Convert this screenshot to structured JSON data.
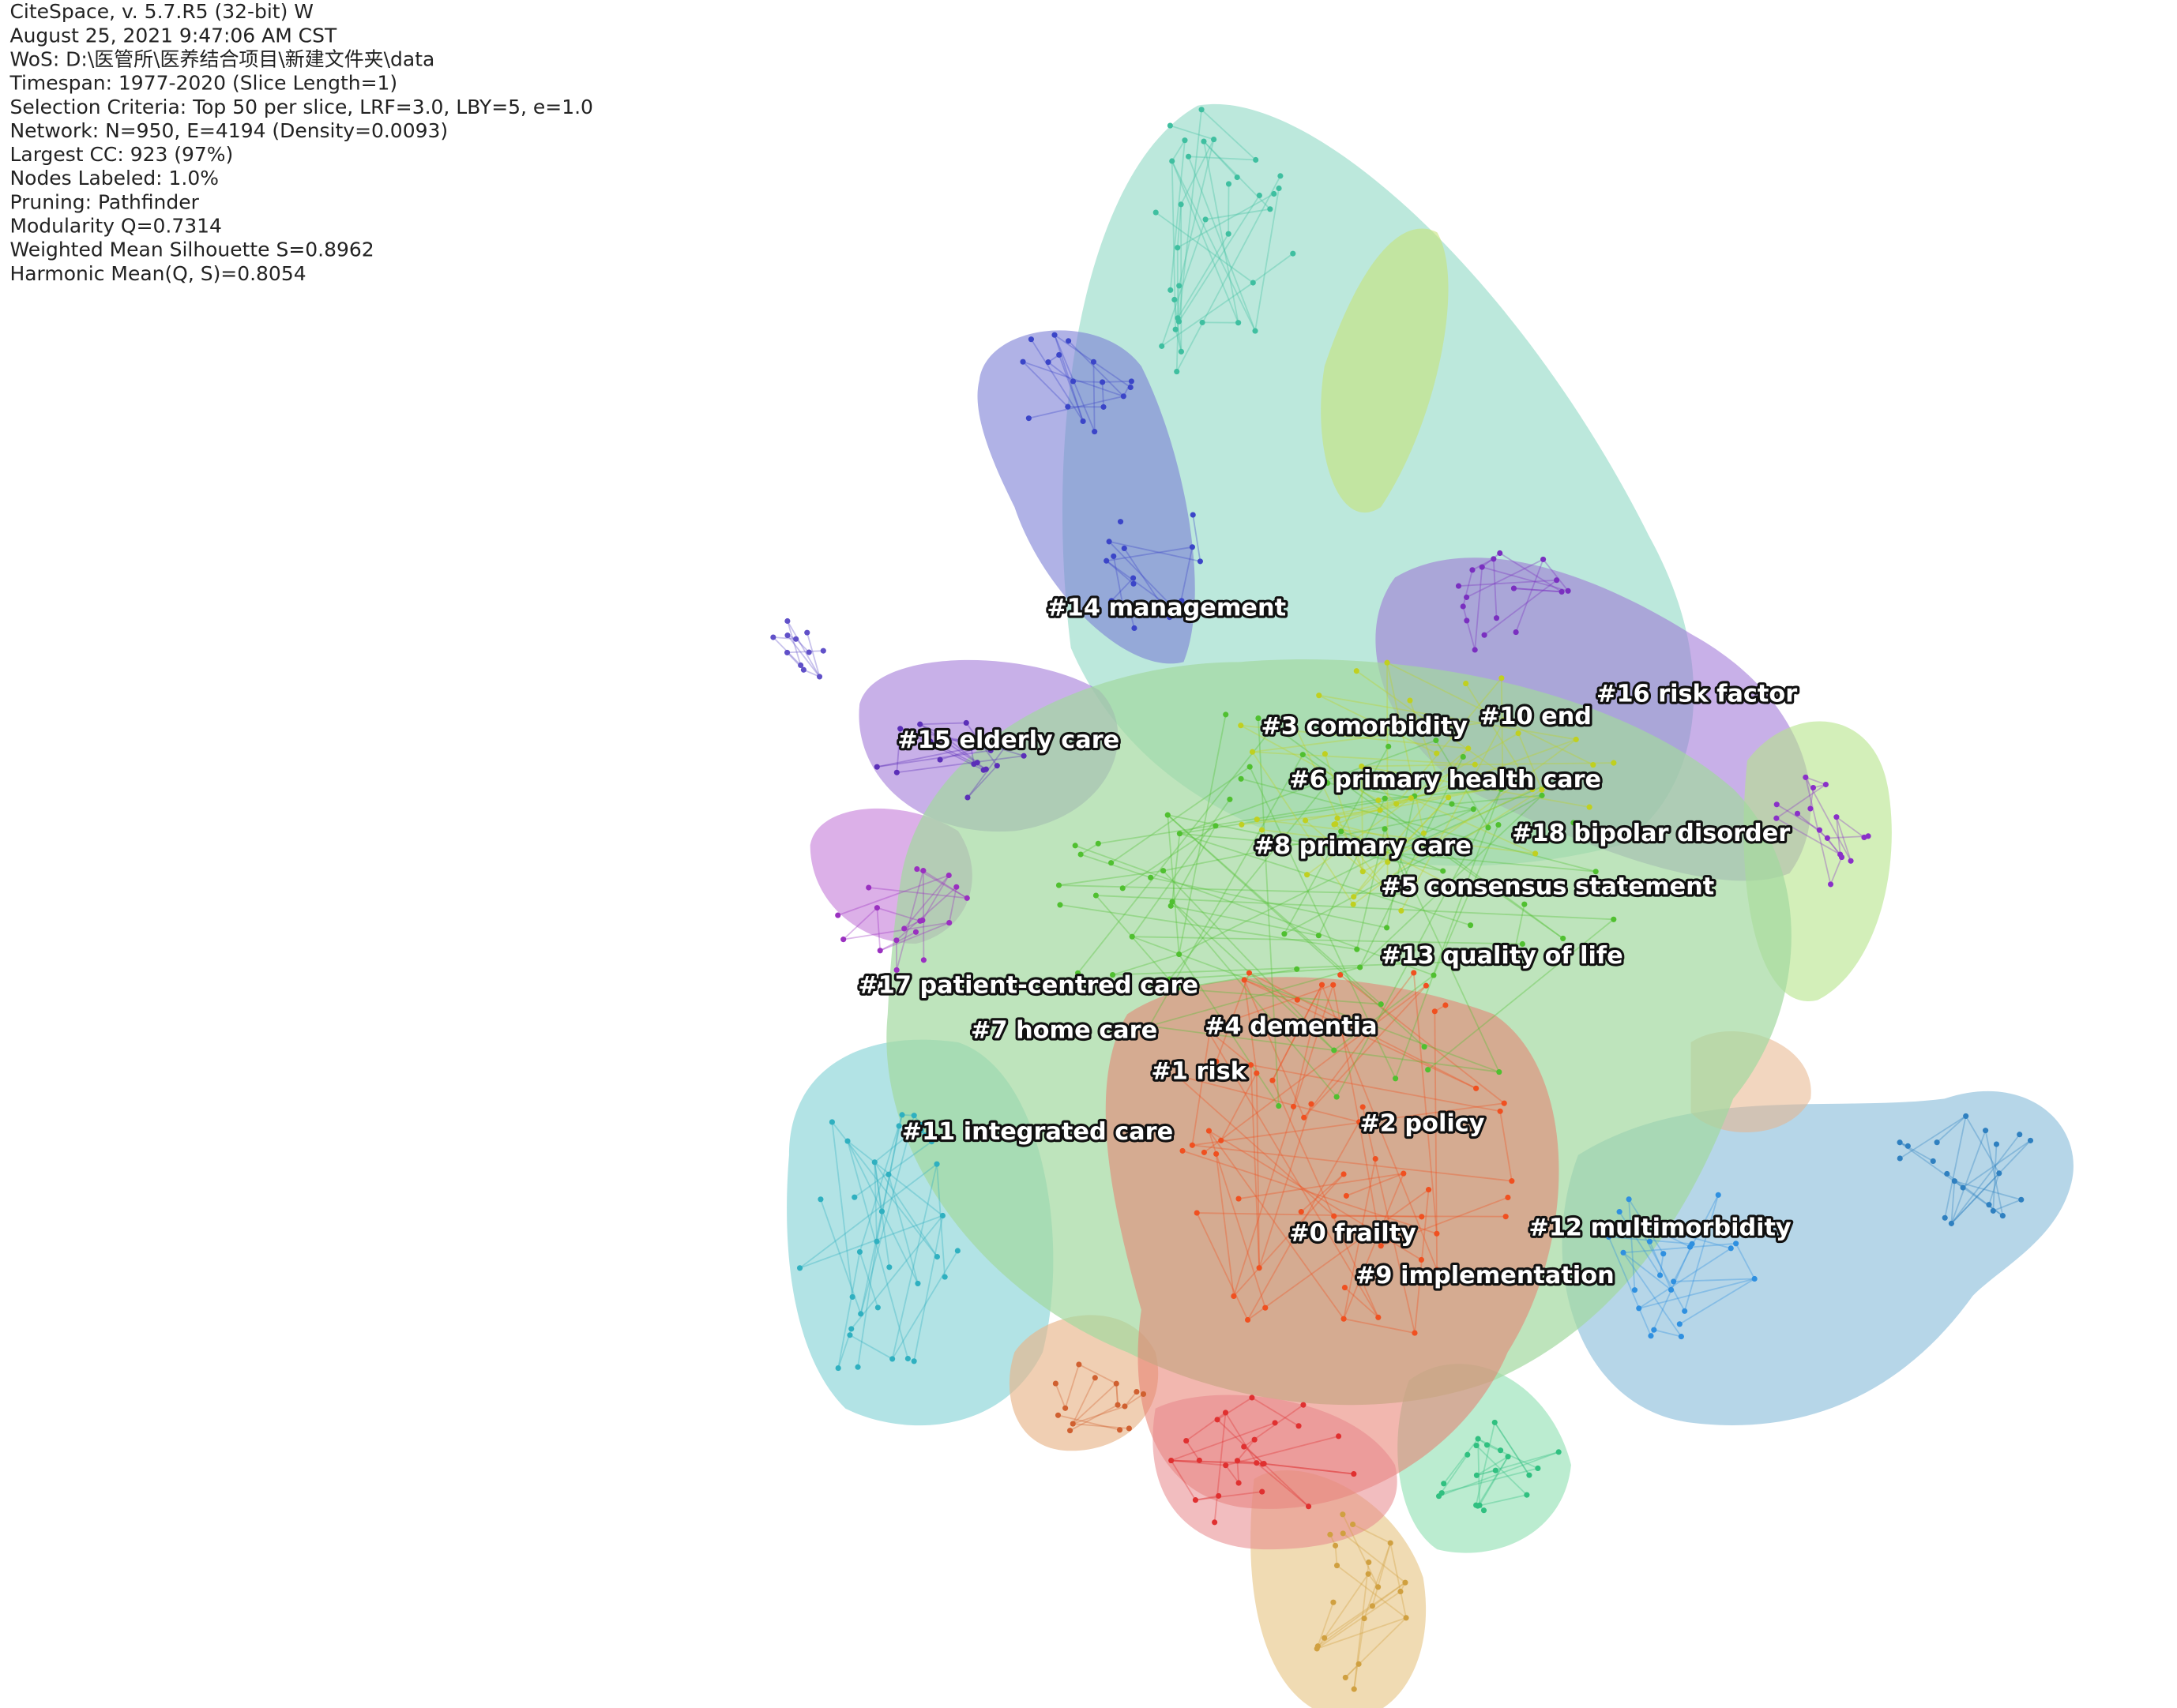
{
  "header": {
    "lines": [
      "CiteSpace, v. 5.7.R5 (32-bit) W",
      "August 25, 2021 9:47:06 AM CST",
      "WoS: D:\\医管所\\医养结合项目\\新建文件夹\\data",
      "Timespan: 1977-2020 (Slice Length=1)",
      "Selection Criteria: Top 50 per slice, LRF=3.0, LBY=5, e=1.0",
      "Network: N=950, E=4194 (Density=0.0093)",
      "Largest CC: 923 (97%)",
      "Nodes Labeled: 1.0%",
      "Pruning: Pathfinder",
      "Modularity Q=0.7314",
      "Weighted Mean Silhouette S=0.8962",
      "Harmonic Mean(Q, S)=0.8054"
    ]
  },
  "clusters": [
    {
      "label": "#14 management"
    },
    {
      "label": "#15 elderly care"
    },
    {
      "label": "#3 comorbidity"
    },
    {
      "label": "#10 end"
    },
    {
      "label": "#16 risk factor"
    },
    {
      "label": "#6 primary health care"
    },
    {
      "label": "#18 bipolar disorder"
    },
    {
      "label": "#8 primary care"
    },
    {
      "label": "#5 consensus statement"
    },
    {
      "label": "#13 quality of life"
    },
    {
      "label": "#17 patient-centred care"
    },
    {
      "label": "#7 home care"
    },
    {
      "label": "#4 dementia"
    },
    {
      "label": "#1 risk"
    },
    {
      "label": "#11 integrated care"
    },
    {
      "label": "#2 policy"
    },
    {
      "label": "#0 frailty"
    },
    {
      "label": "#12 multimorbidity"
    },
    {
      "label": "#9 implementation"
    }
  ]
}
